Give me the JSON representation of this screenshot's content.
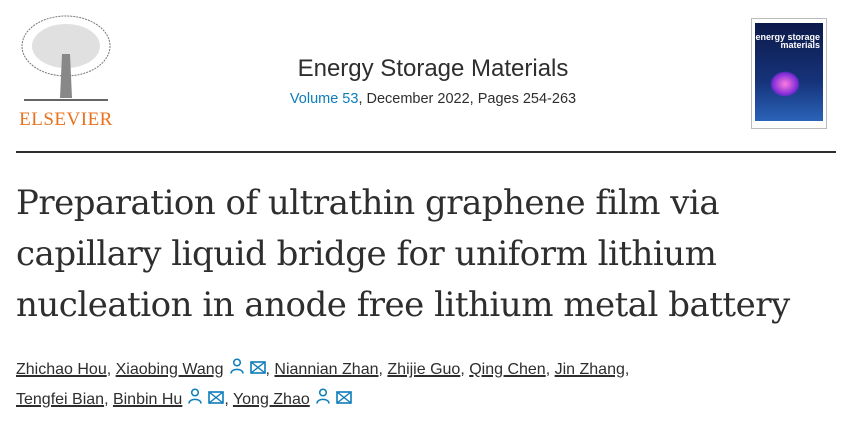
{
  "publisher": {
    "logo_text": "ELSEVIER"
  },
  "journal": {
    "name": "Energy Storage Materials",
    "volume_link": "Volume 53",
    "volume_rest": ", December 2022, Pages 254-263",
    "cover_text": "energy storage materials"
  },
  "article": {
    "title": "Preparation of ultrathin graphene film via capillary liquid bridge for uniform lithium nucleation in anode free lithium metal battery"
  },
  "authors": [
    {
      "name": "Zhichao Hou",
      "icons": []
    },
    {
      "name": "Xiaobing Wang",
      "icons": [
        "person-icon",
        "envelope-icon"
      ]
    },
    {
      "name": "Niannian Zhan",
      "icons": []
    },
    {
      "name": "Zhijie Guo",
      "icons": []
    },
    {
      "name": "Qing Chen",
      "icons": []
    },
    {
      "name": "Jin Zhang",
      "icons": []
    },
    {
      "name": "Tengfei Bian",
      "icons": []
    },
    {
      "name": "Binbin Hu",
      "icons": [
        "person-icon",
        "envelope-icon"
      ]
    },
    {
      "name": "Yong Zhao",
      "icons": [
        "person-icon",
        "envelope-icon"
      ]
    }
  ],
  "colors": {
    "link": "#0c7dbb",
    "logo": "#e9711c"
  }
}
